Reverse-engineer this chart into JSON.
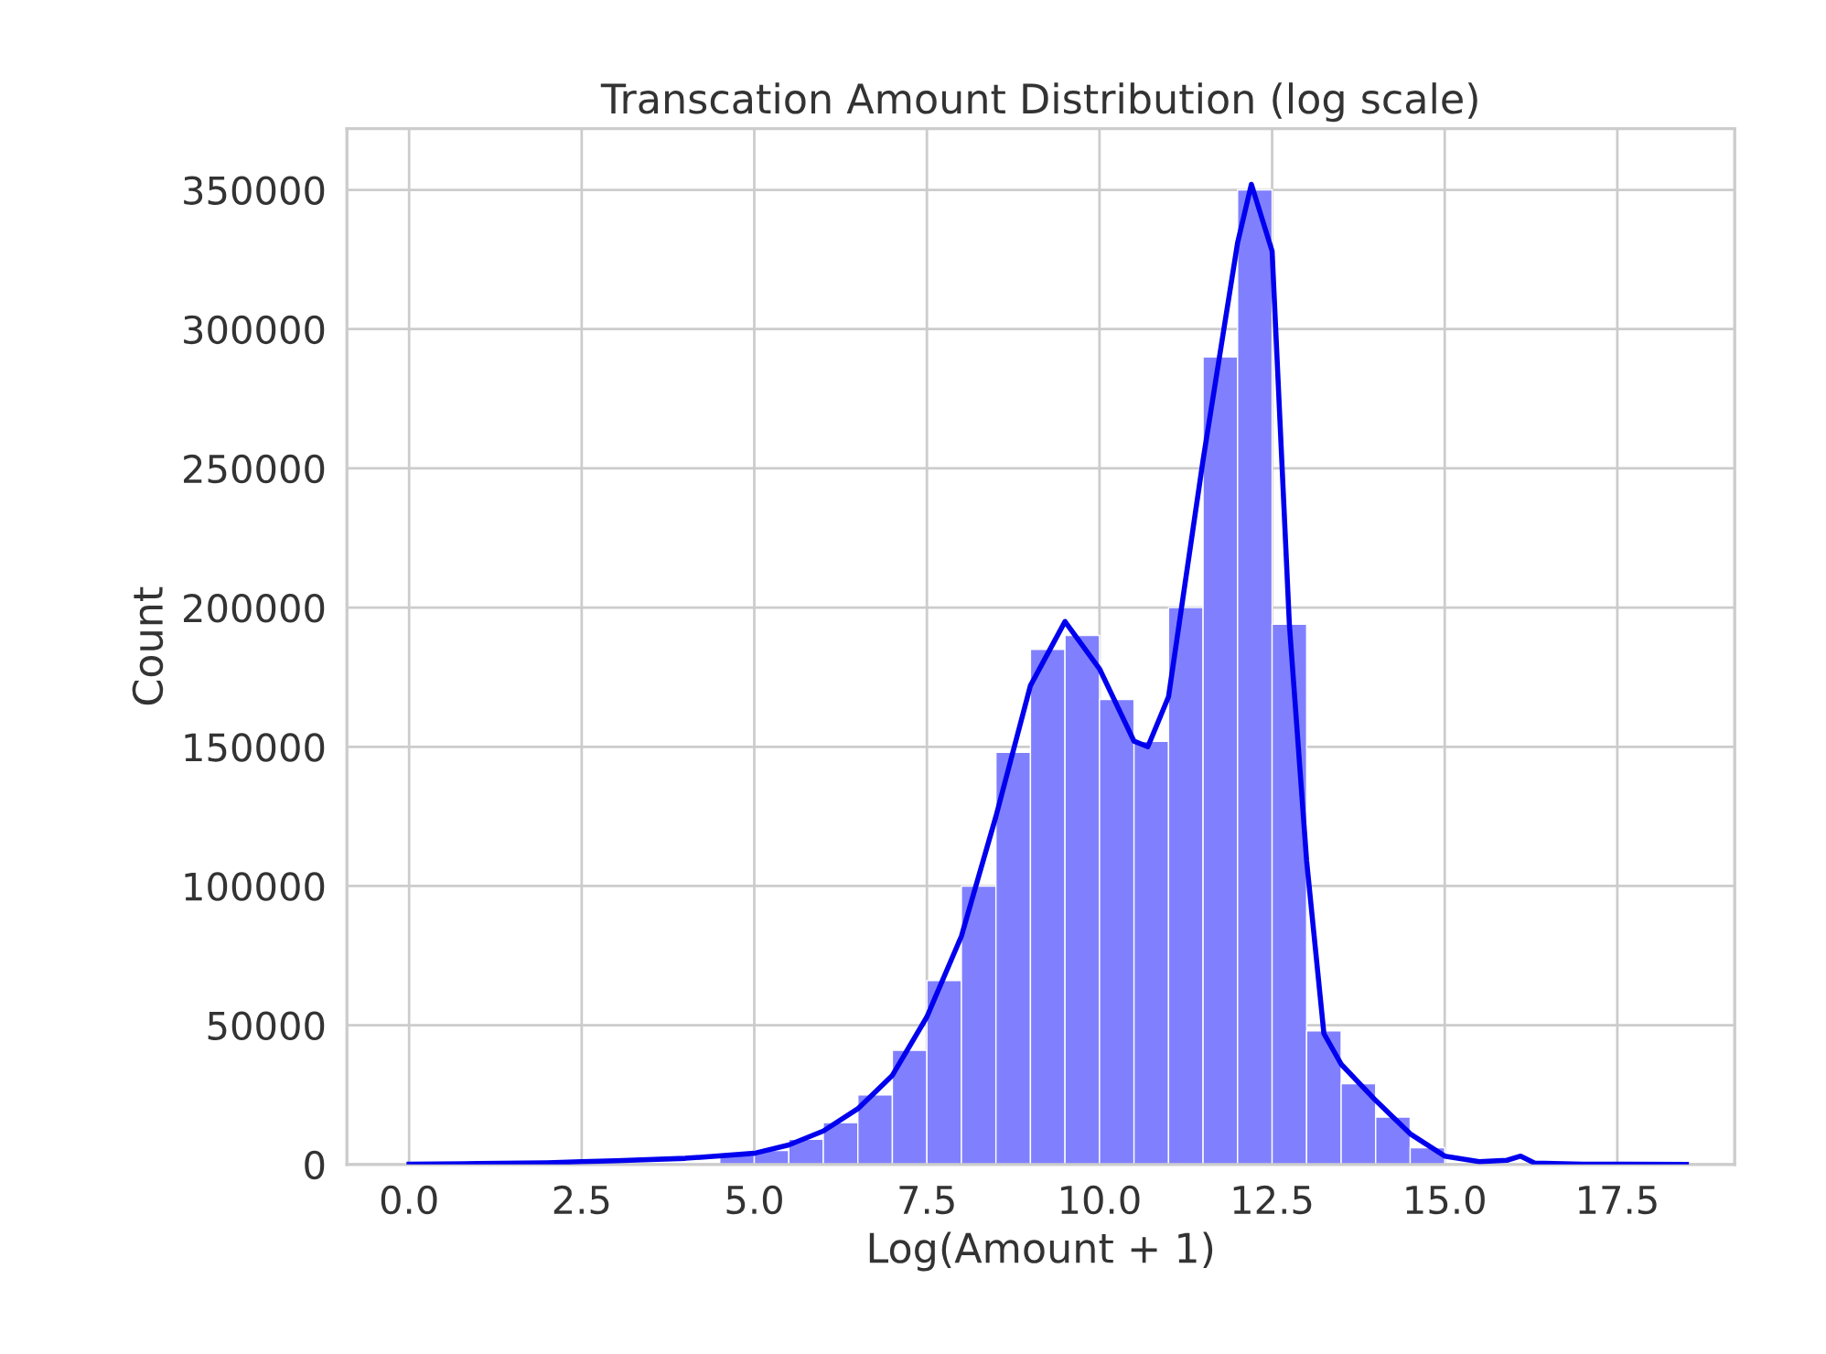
{
  "chart_data": {
    "type": "histogram",
    "title": "Transcation Amount Distribution (log scale)",
    "xlabel": "Log(Amount + 1)",
    "ylabel": "Count",
    "bins": [
      0,
      0.5,
      1,
      1.5,
      2,
      2.5,
      3,
      3.5,
      4,
      4.5,
      5,
      5.5,
      6,
      6.5,
      7,
      7.5,
      8,
      8.5,
      9,
      9.5,
      10,
      10.5,
      11,
      11.5,
      12,
      12.5,
      13,
      13.5,
      14,
      14.5,
      15,
      15.5,
      16,
      16.5,
      17,
      17.5,
      18,
      18.5
    ],
    "values": [
      null,
      null,
      null,
      null,
      null,
      null,
      null,
      null,
      null,
      3200,
      5000,
      9000,
      15000,
      25000,
      41000,
      66000,
      100000,
      148000,
      185000,
      190000,
      167000,
      152000,
      200000,
      290000,
      350000,
      194000,
      48000,
      29000,
      17000,
      6000,
      null,
      null,
      null,
      null,
      null,
      null,
      null
    ],
    "color": "#8080ff",
    "series": [
      {
        "type": "line",
        "color": "#0000ee",
        "x": [
          0,
          1,
          2,
          2.5,
          3,
          4,
          5,
          5.5,
          6,
          6.5,
          7,
          7.5,
          8,
          8.5,
          9,
          9.5,
          10,
          10.5,
          10.7,
          11,
          11.5,
          12,
          12.2,
          12.5,
          12.75,
          13,
          13.25,
          13.5,
          14,
          14.5,
          15,
          15.5,
          15.9,
          16.1,
          16.3,
          17,
          18.5
        ],
        "values": [
          100,
          300,
          600,
          1000,
          1300,
          2200,
          4000,
          7000,
          12000,
          20000,
          32000,
          53000,
          82000,
          125000,
          172000,
          195000,
          178000,
          152000,
          150000,
          168000,
          253000,
          331000,
          352000,
          328000,
          194000,
          109000,
          47000,
          36000,
          23000,
          11000,
          3000,
          1000,
          1500,
          3000,
          500,
          100,
          0
        ]
      }
    ],
    "xlim": [
      -0.9,
      19.2
    ],
    "ylim": [
      0,
      372000
    ],
    "xticks": [
      {
        "value": 0,
        "label": "0.0"
      },
      {
        "value": 2.5,
        "label": "2.5"
      },
      {
        "value": 5,
        "label": "5.0"
      },
      {
        "value": 7.5,
        "label": "7.5"
      },
      {
        "value": 10,
        "label": "10.0"
      },
      {
        "value": 12.5,
        "label": "12.5"
      },
      {
        "value": 15,
        "label": "15.0"
      },
      {
        "value": 17.5,
        "label": "17.5"
      }
    ],
    "yticks": [
      0,
      50000,
      100000,
      150000,
      200000,
      250000,
      300000,
      350000
    ],
    "grid": true
  }
}
